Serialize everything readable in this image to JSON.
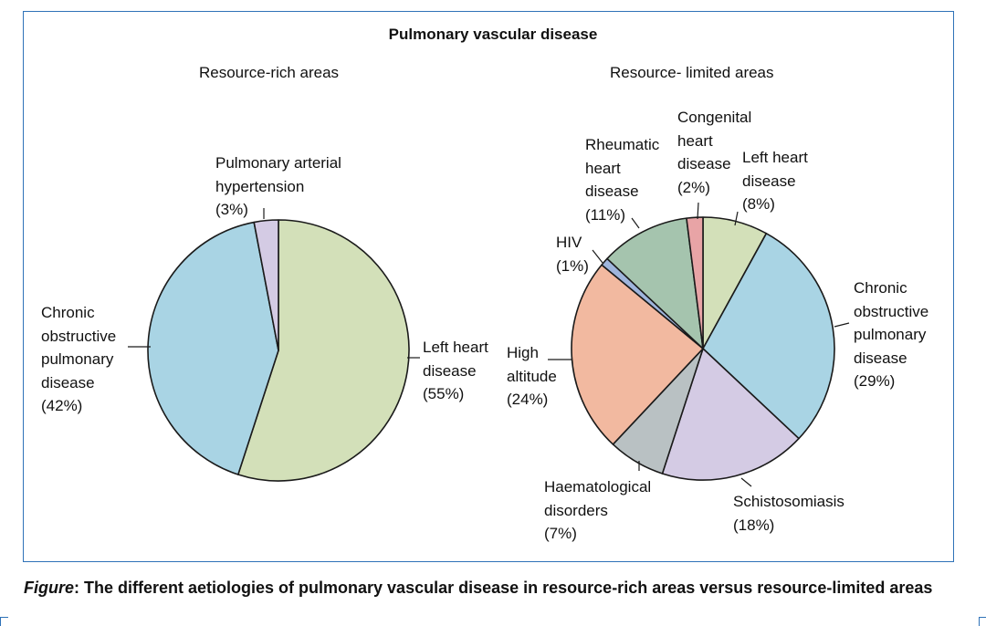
{
  "title": "Pulmonary vascular disease",
  "caption": {
    "prefix": "Figure",
    "text": ": The different aetiologies of pulmonary vascular disease in resource-rich areas versus resource-limited areas"
  },
  "chart_data": [
    {
      "type": "pie",
      "subtitle": "Resource-rich areas",
      "slices": [
        {
          "name": "Left heart disease",
          "value": 55,
          "color": "#d3e0b9",
          "label_lines": [
            "Left heart",
            "disease",
            "(55%)"
          ]
        },
        {
          "name": "Chronic obstructive pulmonary disease",
          "value": 42,
          "color": "#a9d4e4",
          "label_lines": [
            "Chronic",
            "obstructive",
            "pulmonary",
            "disease",
            "(42%)"
          ]
        },
        {
          "name": "Pulmonary arterial hypertension",
          "value": 3,
          "color": "#d4cbe4",
          "label_lines": [
            "Pulmonary arterial",
            "hypertension",
            "(3%)"
          ]
        }
      ]
    },
    {
      "type": "pie",
      "subtitle": "Resource- limited areas",
      "slices": [
        {
          "name": "Left heart disease",
          "value": 8,
          "color": "#d3e0b9",
          "label_lines": [
            "Left heart",
            "disease",
            "(8%)"
          ]
        },
        {
          "name": "Chronic obstructive pulmonary disease",
          "value": 29,
          "color": "#a9d4e4",
          "label_lines": [
            "Chronic",
            "obstructive",
            "pulmonary",
            "disease",
            "(29%)"
          ]
        },
        {
          "name": "Schistosomiasis",
          "value": 18,
          "color": "#d4cbe4",
          "label_lines": [
            "Schistosomiasis",
            "(18%)"
          ]
        },
        {
          "name": "Haematological disorders",
          "value": 7,
          "color": "#b9c1c3",
          "label_lines": [
            "Haematological",
            "disorders",
            "(7%)"
          ]
        },
        {
          "name": "High altitude",
          "value": 24,
          "color": "#f2b9a0",
          "label_lines": [
            "High",
            "altitude",
            "(24%)"
          ]
        },
        {
          "name": "HIV",
          "value": 1,
          "color": "#9fb5dc",
          "label_lines": [
            "HIV",
            "(1%)"
          ]
        },
        {
          "name": "Rheumatic heart disease",
          "value": 11,
          "color": "#a5c4ae",
          "label_lines": [
            "Rheumatic",
            "heart",
            "disease",
            "(11%)"
          ]
        },
        {
          "name": "Congenital heart disease",
          "value": 2,
          "color": "#e8a4a6",
          "label_lines": [
            "Congenital",
            "heart",
            "disease",
            "(2%)"
          ]
        }
      ]
    }
  ]
}
